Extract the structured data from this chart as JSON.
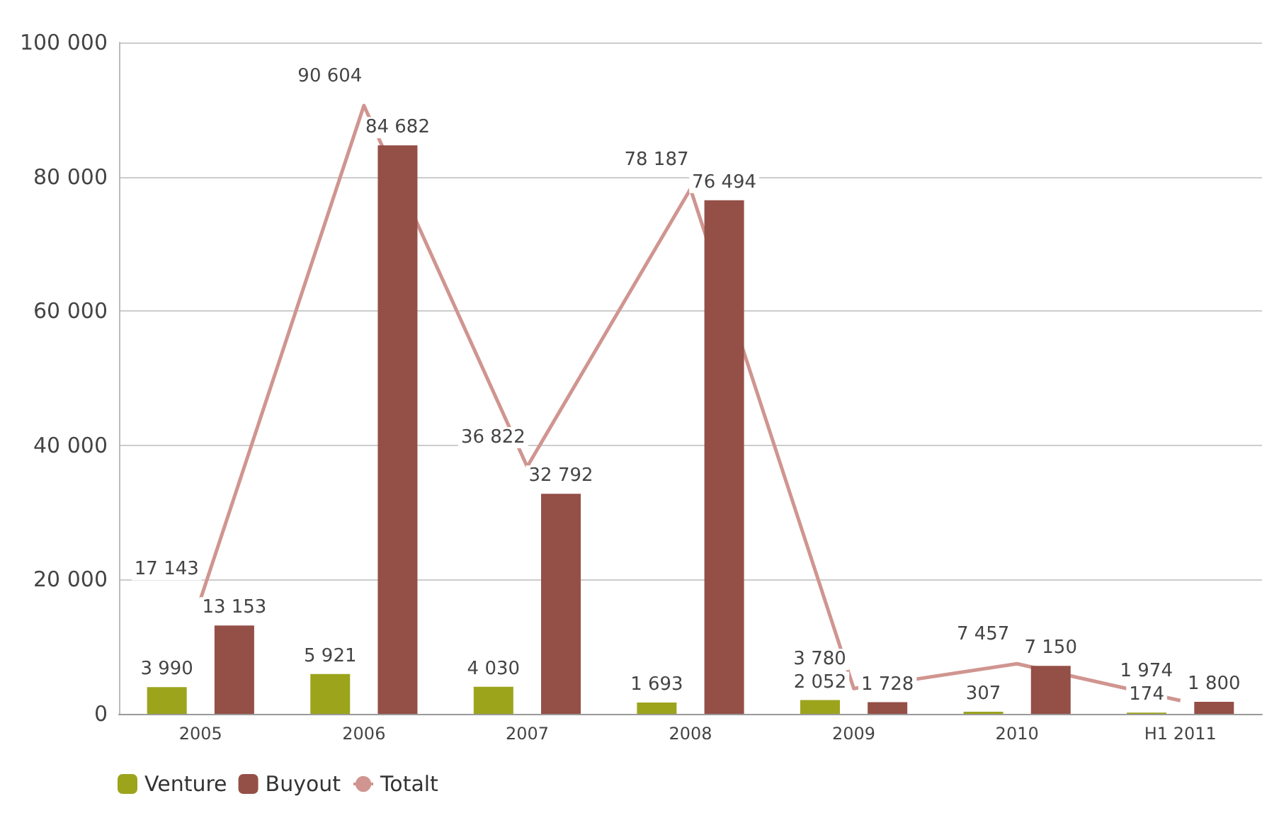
{
  "chart_data": {
    "type": "bar",
    "categories": [
      "2005",
      "2006",
      "2007",
      "2008",
      "2009",
      "2010",
      "H1 2011"
    ],
    "series": [
      {
        "name": "Venture",
        "color": "#9ca41c",
        "values": [
          3990,
          5921,
          4030,
          1693,
          2052,
          307,
          174
        ],
        "value_labels": [
          "3 990",
          "5 921",
          "4 030",
          "1 693",
          "2 052",
          "307",
          "174"
        ]
      },
      {
        "name": "Buyout",
        "color": "#944f47",
        "values": [
          13153,
          84682,
          32792,
          76494,
          1728,
          7150,
          1800
        ],
        "value_labels": [
          "13 153",
          "84 682",
          "32 792",
          "76 494",
          "1 728",
          "7 150",
          "1 800"
        ]
      },
      {
        "name": "Totalt",
        "type": "line",
        "color": "#d09590",
        "values": [
          17143,
          90604,
          36822,
          78187,
          3780,
          7457,
          1974
        ],
        "value_labels": [
          "17 143",
          "90 604",
          "36 822",
          "78 187",
          "3 780",
          "7 457",
          "1 974"
        ]
      }
    ],
    "ylim": [
      0,
      100000
    ],
    "yticks": [
      {
        "value": 0,
        "label": "0"
      },
      {
        "value": 20000,
        "label": "20 000"
      },
      {
        "value": 40000,
        "label": "40 000"
      },
      {
        "value": 60000,
        "label": "60 000"
      },
      {
        "value": 80000,
        "label": "80 000"
      },
      {
        "value": 100000,
        "label": "100 000"
      }
    ],
    "grid": "y",
    "legend": "bottom left",
    "marker": "none"
  }
}
